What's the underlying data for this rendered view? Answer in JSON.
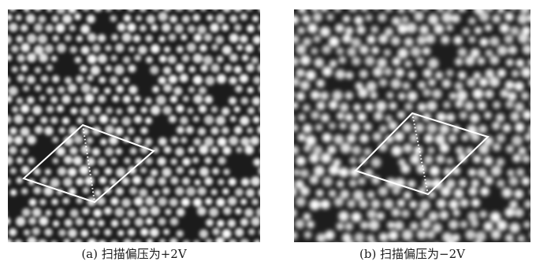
{
  "figure": {
    "panels": [
      {
        "id": "a",
        "caption": "(a) 扫描偏压为+2V",
        "image": "STM atomic-resolution micrograph with bright atom spots and a rhombus unit-cell outline"
      },
      {
        "id": "b",
        "caption": "(b) 扫描偏压为−2V",
        "image": "STM atomic-resolution micrograph with bright atom spots and a rhombus unit-cell outline"
      }
    ],
    "colors": {
      "background": "#141414",
      "atom": "#f2f2f2",
      "unit_cell": "#ffffff"
    }
  }
}
